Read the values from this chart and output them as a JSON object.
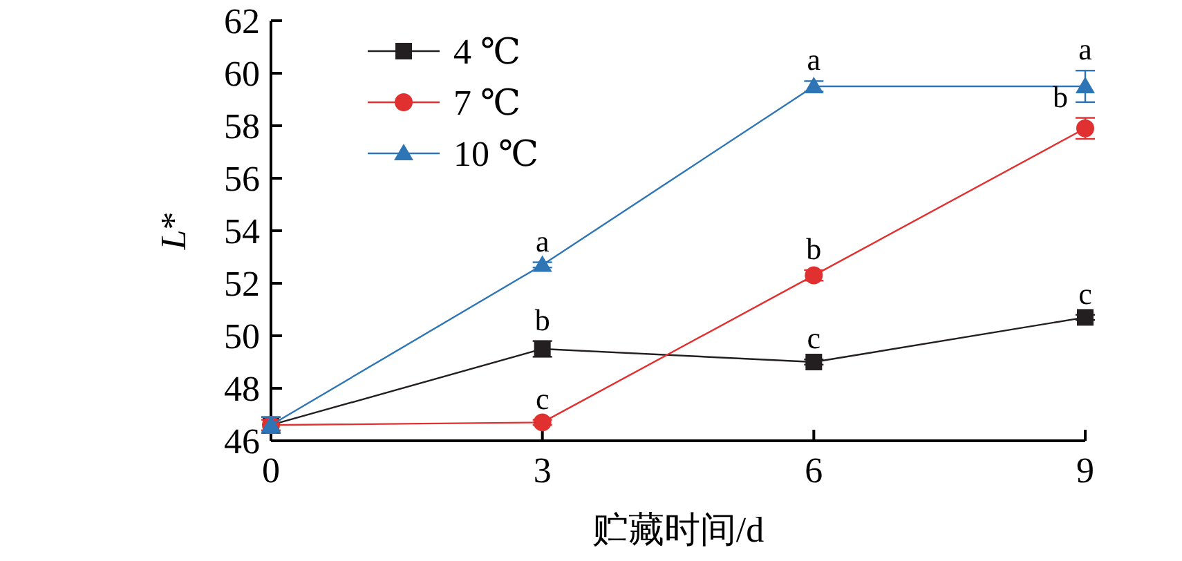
{
  "chart_data": {
    "type": "line",
    "xlabel": "贮藏时间/d",
    "ylabel": "L*",
    "x": [
      0,
      3,
      6,
      9
    ],
    "xlim": [
      0,
      9
    ],
    "xticks": [
      0,
      3,
      6,
      9
    ],
    "ylim": [
      46,
      62
    ],
    "yticks": [
      46,
      48,
      50,
      52,
      54,
      56,
      58,
      60,
      62
    ],
    "legend": "top left",
    "grid": false,
    "series": [
      {
        "name": "4 ℃",
        "color": "#231f20",
        "marker": "square",
        "values": [
          46.6,
          49.5,
          49.0,
          50.7
        ],
        "errors": [
          0.3,
          0.3,
          0.1,
          0.1
        ]
      },
      {
        "name": "7 ℃",
        "color": "#e03030",
        "marker": "circle",
        "values": [
          46.6,
          46.7,
          52.3,
          57.9
        ],
        "errors": [
          0.2,
          0.1,
          0.2,
          0.4
        ]
      },
      {
        "name": "10 ℃",
        "color": "#2e75b6",
        "marker": "triangle",
        "values": [
          46.6,
          52.7,
          59.5,
          59.5
        ],
        "errors": [
          0.3,
          0.1,
          0.2,
          0.6
        ]
      }
    ],
    "annotations": [
      {
        "text": "a",
        "x": 3,
        "y": 52.7
      },
      {
        "text": "b",
        "x": 3,
        "y": 49.5
      },
      {
        "text": "c",
        "x": 3,
        "y": 46.7
      },
      {
        "text": "a",
        "x": 6,
        "y": 59.5
      },
      {
        "text": "b",
        "x": 6,
        "y": 52.3
      },
      {
        "text": "c",
        "x": 6,
        "y": 49.0
      },
      {
        "text": "a",
        "x": 9,
        "y": 59.5
      },
      {
        "text": "b",
        "x": 9,
        "y": 57.9
      },
      {
        "text": "c",
        "x": 9,
        "y": 50.7
      }
    ]
  }
}
